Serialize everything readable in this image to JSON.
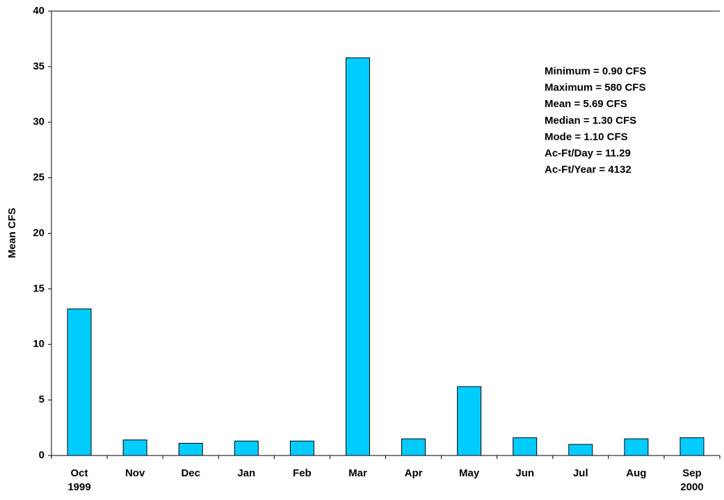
{
  "chart_data": {
    "type": "bar",
    "y_label": "Mean CFS",
    "categories": [
      "Oct\n1999",
      "Nov",
      "Dec",
      "Jan",
      "Feb",
      "Mar",
      "Apr",
      "May",
      "Jun",
      "Jul",
      "Aug",
      "Sep\n2000"
    ],
    "values": [
      13.2,
      1.4,
      1.1,
      1.3,
      1.3,
      35.8,
      1.5,
      6.2,
      1.6,
      1.0,
      1.5,
      1.6
    ],
    "color": "#00ccff",
    "ylim": [
      0,
      40
    ],
    "yticks": [
      0,
      5,
      10,
      15,
      20,
      25,
      30,
      35,
      40
    ],
    "annotations": [
      "Minimum = 0.90 CFS",
      "Maximum = 580 CFS",
      "Mean = 5.69 CFS",
      "Median = 1.30 CFS",
      "Mode = 1.10 CFS",
      "Ac-Ft/Day = 11.29",
      "Ac-Ft/Year = 4132"
    ]
  }
}
